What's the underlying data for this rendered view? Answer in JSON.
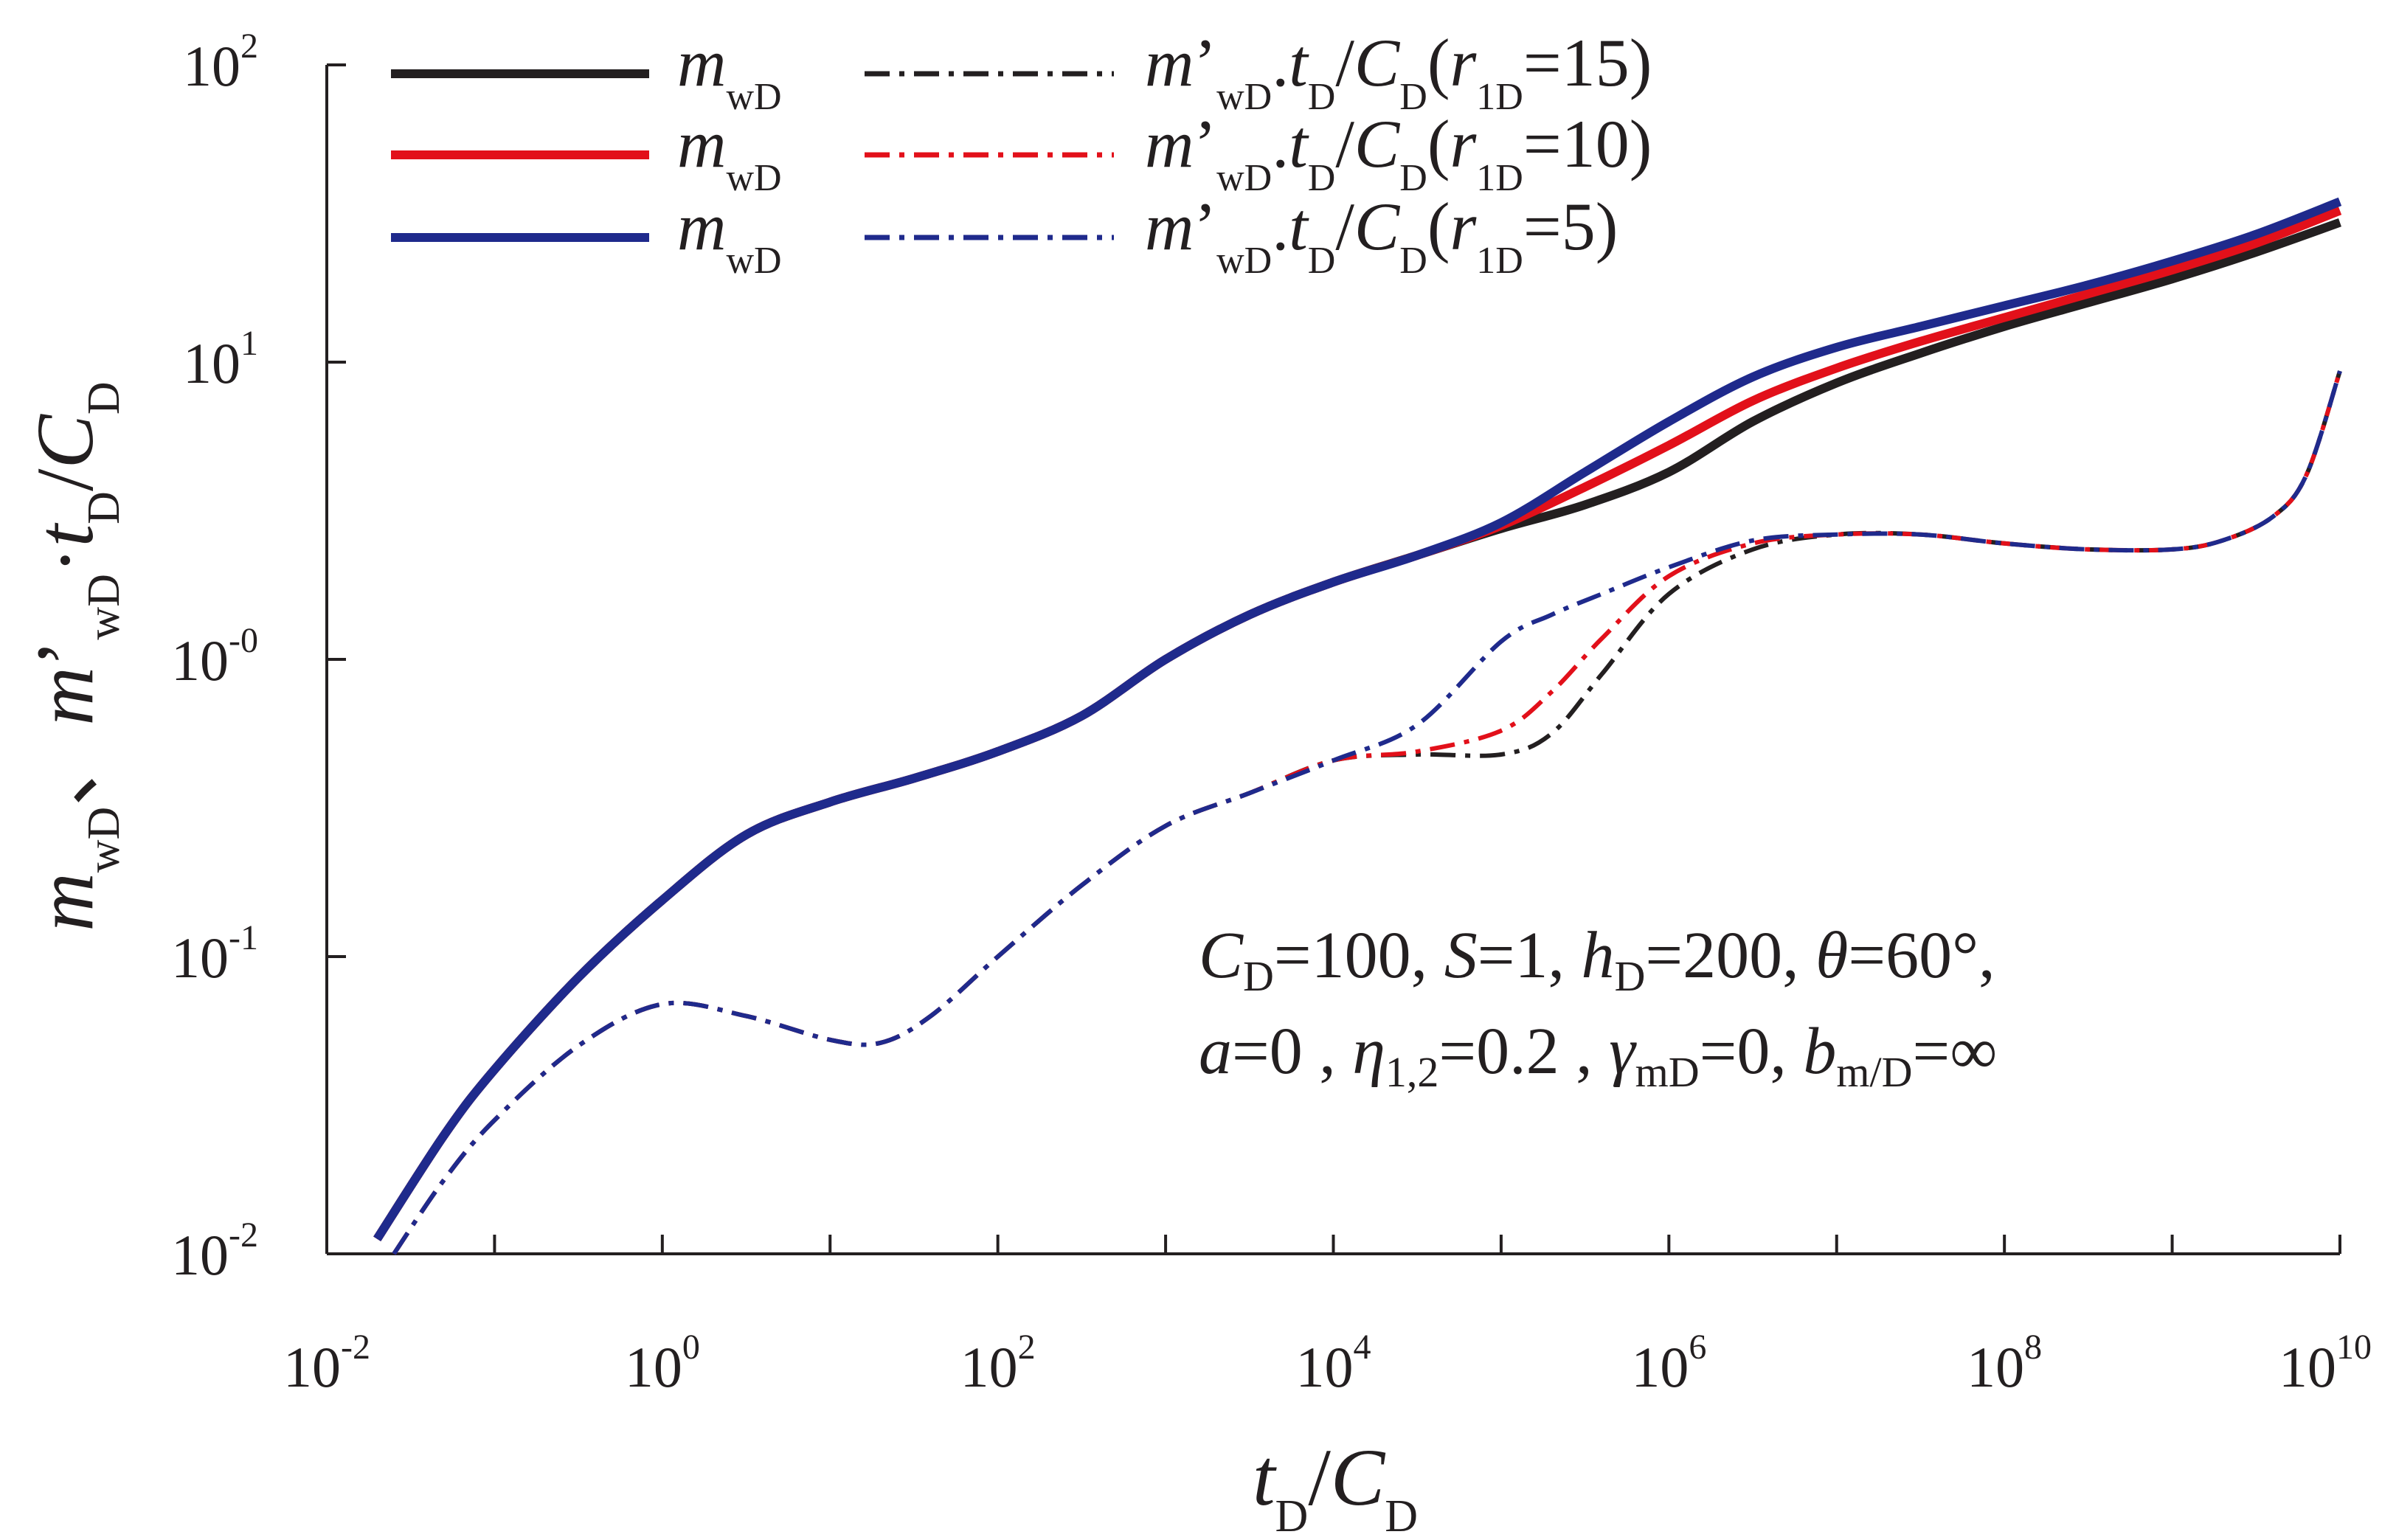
{
  "chart_data": {
    "type": "line",
    "scale": "log-log",
    "title": "",
    "xlabel": "t_D/C_D",
    "ylabel": "m_wD、m'_wD·t_D/C_D",
    "x_axis": {
      "range_log10": [
        -2,
        10
      ],
      "tick_exponents": [
        "-2",
        "0",
        "2",
        "4",
        "6",
        "8",
        "10"
      ],
      "minor_tick_exponents": [
        -1,
        1,
        3,
        5,
        7,
        9
      ]
    },
    "y_axis": {
      "range_log10": [
        -2,
        2
      ],
      "tick_exponents": [
        "2",
        "1",
        "-0",
        "-1",
        "-2"
      ],
      "tick_values_log10": [
        2,
        1,
        0,
        -1,
        -2
      ]
    },
    "grid": false,
    "legend_position": "top-left",
    "legend": [
      {
        "solid": "m_wD",
        "dashed": "m'_wD.t_D/C_D(r_1D=15)",
        "r1D": "15",
        "color": "#231f20"
      },
      {
        "solid": "m_wD",
        "dashed": "m'_wD.t_D/C_D(r_1D=10)",
        "r1D": "10",
        "color": "#e2101a"
      },
      {
        "solid": "m_wD",
        "dashed": "m'_wD.t_D/C_D(r_1D=5)",
        "r1D": "5",
        "color": "#1f2a8c"
      }
    ],
    "annotation": [
      "C_D=100, S=1, h_D=200, θ=60°,",
      "a=0, η_1,2=0.2, γ_mD=0, b_m/D=∞"
    ],
    "series": [
      {
        "name": "m_wD (r_1D=15)",
        "style": "solid",
        "color": "#231f20",
        "x_log10": [
          -1.7,
          -1.3,
          -1,
          -0.5,
          0,
          0.5,
          1,
          1.5,
          2,
          2.5,
          3,
          3.5,
          4,
          4.5,
          5,
          5.5,
          6,
          6.5,
          7,
          7.5,
          8,
          8.5,
          9,
          9.5,
          10
        ],
        "y_log10": [
          -1.95,
          -1.6,
          -1.38,
          -1.07,
          -0.81,
          -0.59,
          -0.48,
          -0.4,
          -0.31,
          -0.19,
          0.0,
          0.15,
          0.26,
          0.35,
          0.44,
          0.52,
          0.63,
          0.8,
          0.93,
          1.03,
          1.12,
          1.2,
          1.28,
          1.37,
          1.47
        ]
      },
      {
        "name": "m_wD (r_1D=10)",
        "style": "solid",
        "color": "#e2101a",
        "x_log10": [
          -1.7,
          -1.3,
          -1,
          -0.5,
          0,
          0.5,
          1,
          1.5,
          2,
          2.5,
          3,
          3.5,
          4,
          4.5,
          5,
          5.5,
          6,
          6.5,
          7,
          7.5,
          8,
          8.5,
          9,
          9.5,
          10
        ],
        "y_log10": [
          -1.95,
          -1.6,
          -1.38,
          -1.07,
          -0.81,
          -0.59,
          -0.48,
          -0.4,
          -0.31,
          -0.19,
          0.0,
          0.15,
          0.26,
          0.35,
          0.45,
          0.58,
          0.72,
          0.87,
          0.98,
          1.07,
          1.15,
          1.23,
          1.31,
          1.4,
          1.51
        ]
      },
      {
        "name": "m_wD (r_1D=5)",
        "style": "solid",
        "color": "#1f2a8c",
        "x_log10": [
          -1.7,
          -1.3,
          -1,
          -0.5,
          0,
          0.5,
          1,
          1.5,
          2,
          2.5,
          3,
          3.5,
          4,
          4.5,
          5,
          5.5,
          6,
          6.5,
          7,
          7.5,
          8,
          8.5,
          9,
          9.5,
          10
        ],
        "y_log10": [
          -1.95,
          -1.6,
          -1.38,
          -1.07,
          -0.81,
          -0.59,
          -0.48,
          -0.4,
          -0.31,
          -0.19,
          0.0,
          0.15,
          0.26,
          0.35,
          0.46,
          0.63,
          0.8,
          0.95,
          1.05,
          1.12,
          1.19,
          1.26,
          1.34,
          1.43,
          1.54
        ]
      },
      {
        "name": "m'_wD.t_D/C_D (r_1D=15)",
        "style": "dashdot",
        "color": "#231f20",
        "x_log10": [
          -1.6,
          -1.3,
          -1,
          -0.5,
          0,
          0.5,
          1,
          1.3,
          1.6,
          2,
          2.5,
          3,
          3.5,
          4,
          4.5,
          5,
          5.3,
          5.6,
          6,
          6.5,
          7,
          7.5,
          8,
          8.5,
          9,
          9.3,
          9.6,
          9.8,
          10
        ],
        "y_log10": [
          -2.0,
          -1.75,
          -1.55,
          -1.3,
          -1.16,
          -1.2,
          -1.28,
          -1.29,
          -1.2,
          -1.0,
          -0.76,
          -0.56,
          -0.45,
          -0.34,
          -0.32,
          -0.32,
          -0.25,
          -0.05,
          0.22,
          0.37,
          0.42,
          0.42,
          0.39,
          0.37,
          0.37,
          0.4,
          0.48,
          0.62,
          0.97
        ]
      },
      {
        "name": "m'_wD.t_D/C_D (r_1D=10)",
        "style": "dashdot",
        "color": "#e2101a",
        "x_log10": [
          -1.6,
          -1.3,
          -1,
          -0.5,
          0,
          0.5,
          1,
          1.3,
          1.6,
          2,
          2.5,
          3,
          3.5,
          4,
          4.5,
          5,
          5.3,
          5.6,
          6,
          6.5,
          7,
          7.5,
          8,
          8.5,
          9,
          9.3,
          9.6,
          9.8,
          10
        ],
        "y_log10": [
          -2.0,
          -1.75,
          -1.55,
          -1.3,
          -1.16,
          -1.2,
          -1.28,
          -1.29,
          -1.2,
          -1.0,
          -0.76,
          -0.56,
          -0.45,
          -0.34,
          -0.31,
          -0.24,
          -0.11,
          0.07,
          0.28,
          0.39,
          0.42,
          0.42,
          0.39,
          0.37,
          0.37,
          0.4,
          0.48,
          0.62,
          0.97
        ]
      },
      {
        "name": "m'_wD.t_D/C_D (r_1D=5)",
        "style": "dashdot",
        "color": "#1f2a8c",
        "x_log10": [
          -1.6,
          -1.3,
          -1,
          -0.5,
          0,
          0.5,
          1,
          1.3,
          1.6,
          2,
          2.5,
          3,
          3.5,
          4,
          4.5,
          5,
          5.3,
          5.6,
          6,
          6.5,
          7,
          7.5,
          8,
          8.5,
          9,
          9.3,
          9.6,
          9.8,
          10
        ],
        "y_log10": [
          -2.0,
          -1.75,
          -1.55,
          -1.3,
          -1.16,
          -1.2,
          -1.28,
          -1.29,
          -1.2,
          -1.0,
          -0.76,
          -0.56,
          -0.45,
          -0.34,
          -0.22,
          0.06,
          0.15,
          0.22,
          0.31,
          0.4,
          0.42,
          0.42,
          0.39,
          0.37,
          0.37,
          0.4,
          0.48,
          0.62,
          0.97
        ]
      }
    ]
  }
}
